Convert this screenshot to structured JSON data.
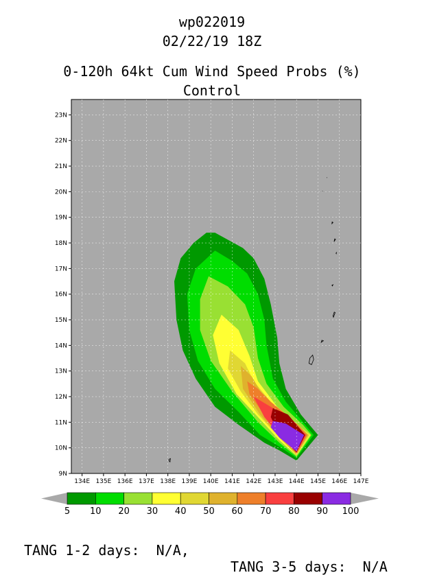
{
  "header": {
    "storm_id": "wp022019",
    "datetime": "02/22/19 18Z",
    "product": "0-120h 64kt Cum Wind Speed Probs (%)",
    "run": "Control"
  },
  "chart_data": {
    "type": "filled-contour-map",
    "xlabel": "",
    "ylabel": "",
    "xlim": [
      133.5,
      147
    ],
    "ylim": [
      9,
      23.6
    ],
    "x_ticks": [
      "134E",
      "135E",
      "136E",
      "137E",
      "138E",
      "139E",
      "140E",
      "141E",
      "142E",
      "143E",
      "144E",
      "145E",
      "146E",
      "147E"
    ],
    "x_tick_values": [
      134,
      135,
      136,
      137,
      138,
      139,
      140,
      141,
      142,
      143,
      144,
      145,
      146,
      147
    ],
    "y_ticks": [
      "9N",
      "10N",
      "11N",
      "12N",
      "13N",
      "14N",
      "15N",
      "16N",
      "17N",
      "18N",
      "19N",
      "20N",
      "21N",
      "22N",
      "23N"
    ],
    "y_tick_values": [
      9,
      10,
      11,
      12,
      13,
      14,
      15,
      16,
      17,
      18,
      19,
      20,
      21,
      22,
      23
    ],
    "grid": true,
    "background_color": "#a9a9a9",
    "colorbar": {
      "levels": [
        "5",
        "10",
        "20",
        "30",
        "40",
        "50",
        "60",
        "70",
        "80",
        "90",
        "100"
      ],
      "colors": [
        "#009900",
        "#00dd00",
        "#99e033",
        "#ffff33",
        "#e0d733",
        "#dfb22d",
        "#ee7f2a",
        "#f93f3f",
        "#990000",
        "#8a2be2"
      ]
    },
    "contours": [
      {
        "level": 5,
        "color": "#009900",
        "points": [
          [
            139.8,
            18.4
          ],
          [
            140.2,
            18.4
          ],
          [
            141.5,
            17.8
          ],
          [
            142,
            17.4
          ],
          [
            142.5,
            16.6
          ],
          [
            142.8,
            15.6
          ],
          [
            143.1,
            14.3
          ],
          [
            143.2,
            13.3
          ],
          [
            143.5,
            12.3
          ],
          [
            144.2,
            11.3
          ],
          [
            145,
            10.5
          ],
          [
            144,
            9.5
          ],
          [
            143.2,
            9.9
          ],
          [
            142.5,
            10.2
          ],
          [
            141.3,
            10.9
          ],
          [
            140.2,
            11.6
          ],
          [
            139.3,
            12.7
          ],
          [
            138.7,
            13.8
          ],
          [
            138.4,
            15
          ],
          [
            138.3,
            16.5
          ],
          [
            138.6,
            17.4
          ],
          [
            139.2,
            18
          ]
        ]
      },
      {
        "level": 10,
        "color": "#00dd00",
        "points": [
          [
            140.2,
            17.7
          ],
          [
            141,
            17.3
          ],
          [
            141.7,
            16.8
          ],
          [
            142.2,
            16
          ],
          [
            142.5,
            15
          ],
          [
            142.6,
            14
          ],
          [
            142.9,
            12.7
          ],
          [
            143.5,
            11.8
          ],
          [
            144.3,
            11
          ],
          [
            144.8,
            10.5
          ],
          [
            144,
            9.6
          ],
          [
            143.3,
            10
          ],
          [
            142.3,
            10.5
          ],
          [
            141.3,
            11.4
          ],
          [
            140.2,
            12.3
          ],
          [
            139.4,
            13.4
          ],
          [
            139,
            14.6
          ],
          [
            138.9,
            16
          ],
          [
            139.3,
            17
          ]
        ]
      },
      {
        "level": 20,
        "color": "#99e033",
        "points": [
          [
            139.9,
            16.7
          ],
          [
            140.8,
            16.3
          ],
          [
            141.6,
            15.6
          ],
          [
            142,
            14.7
          ],
          [
            142.2,
            13.5
          ],
          [
            142.6,
            12.5
          ],
          [
            143.4,
            11.6
          ],
          [
            144.3,
            10.9
          ],
          [
            144.7,
            10.5
          ],
          [
            144,
            9.65
          ],
          [
            143.2,
            10.2
          ],
          [
            142.2,
            11
          ],
          [
            141,
            12.2
          ],
          [
            140,
            13.4
          ],
          [
            139.5,
            14.6
          ],
          [
            139.5,
            15.8
          ]
        ]
      },
      {
        "level": 30,
        "color": "#ffff33",
        "points": [
          [
            140.5,
            15.2
          ],
          [
            141.3,
            14.6
          ],
          [
            141.8,
            13.6
          ],
          [
            142.2,
            12.6
          ],
          [
            143.1,
            11.6
          ],
          [
            144.2,
            10.8
          ],
          [
            144.65,
            10.5
          ],
          [
            144,
            9.7
          ],
          [
            143.2,
            10.3
          ],
          [
            142.2,
            11.2
          ],
          [
            141.2,
            12.1
          ],
          [
            140.4,
            13.3
          ],
          [
            140.1,
            14.4
          ]
        ]
      },
      {
        "level": 40,
        "color": "#e0d733",
        "points": [
          [
            140.9,
            13.8
          ],
          [
            141.6,
            13.3
          ],
          [
            142,
            12.6
          ],
          [
            142.9,
            11.7
          ],
          [
            144.2,
            10.8
          ],
          [
            144.6,
            10.5
          ],
          [
            144,
            9.72
          ],
          [
            143.2,
            10.4
          ],
          [
            142.2,
            11.3
          ],
          [
            141.4,
            12.2
          ],
          [
            140.8,
            13.1
          ]
        ]
      },
      {
        "level": 50,
        "color": "#dfb22d",
        "points": [
          [
            141.4,
            13.2
          ],
          [
            141.9,
            12.8
          ],
          [
            142.4,
            12.1
          ],
          [
            143,
            11.6
          ],
          [
            144.1,
            10.9
          ],
          [
            144.55,
            10.5
          ],
          [
            144,
            9.75
          ],
          [
            143.2,
            10.4
          ],
          [
            142.3,
            11.3
          ],
          [
            141.5,
            12.3
          ]
        ]
      },
      {
        "level": 60,
        "color": "#ee7f2a",
        "points": [
          [
            141.7,
            12.6
          ],
          [
            142.2,
            12.3
          ],
          [
            142.8,
            11.8
          ],
          [
            143.8,
            11.1
          ],
          [
            144.5,
            10.5
          ],
          [
            144,
            9.78
          ],
          [
            143.2,
            10.5
          ],
          [
            142.4,
            11.4
          ],
          [
            141.8,
            12.1
          ]
        ]
      },
      {
        "level": 70,
        "color": "#f93f3f",
        "points": [
          [
            142,
            12
          ],
          [
            142.6,
            11.7
          ],
          [
            143.6,
            11.2
          ],
          [
            144.45,
            10.5
          ],
          [
            144,
            9.8
          ],
          [
            143.2,
            10.5
          ],
          [
            142.5,
            11.2
          ]
        ]
      },
      {
        "level": 80,
        "color": "#990000",
        "points": [
          [
            142.9,
            11.55
          ],
          [
            143.6,
            11.3
          ],
          [
            144.4,
            10.5
          ],
          [
            144,
            9.83
          ],
          [
            143.2,
            10.5
          ],
          [
            142.8,
            11.2
          ]
        ]
      },
      {
        "level": 90,
        "color": "#8a2be2",
        "points": [
          [
            142.9,
            11.05
          ],
          [
            143.5,
            10.95
          ],
          [
            144.35,
            10.5
          ],
          [
            144,
            9.86
          ],
          [
            143.2,
            10.4
          ],
          [
            142.8,
            10.8
          ]
        ]
      }
    ],
    "islands": [
      {
        "name": "island-small",
        "points": [
          [
            138.05,
            9.55
          ],
          [
            138.12,
            9.58
          ],
          [
            138.1,
            9.45
          ],
          [
            138.05,
            9.5
          ]
        ]
      },
      {
        "name": "island-guam",
        "points": [
          [
            144.7,
            13.25
          ],
          [
            144.8,
            13.45
          ],
          [
            144.75,
            13.62
          ],
          [
            144.62,
            13.5
          ],
          [
            144.58,
            13.3
          ]
        ]
      },
      {
        "name": "island-rota",
        "points": [
          [
            145.15,
            14.12
          ],
          [
            145.25,
            14.18
          ],
          [
            145.18,
            14.2
          ]
        ]
      },
      {
        "name": "island-saipan",
        "points": [
          [
            145.72,
            15.1
          ],
          [
            145.8,
            15.28
          ],
          [
            145.76,
            15.3
          ],
          [
            145.7,
            15.15
          ]
        ]
      },
      {
        "name": "island-anatahan",
        "points": [
          [
            145.65,
            16.35
          ],
          [
            145.7,
            16.37
          ],
          [
            145.67,
            16.32
          ]
        ]
      },
      {
        "name": "island-alamagan",
        "points": [
          [
            145.84,
            17.6
          ],
          [
            145.86,
            17.62
          ],
          [
            145.85,
            17.58
          ]
        ]
      },
      {
        "name": "island-pagan",
        "points": [
          [
            145.75,
            18.05
          ],
          [
            145.82,
            18.14
          ],
          [
            145.78,
            18.16
          ]
        ]
      },
      {
        "name": "island-agrihan",
        "points": [
          [
            145.65,
            18.75
          ],
          [
            145.7,
            18.8
          ],
          [
            145.66,
            18.82
          ]
        ]
      },
      {
        "name": "island-uracas",
        "points": [
          [
            145.4,
            20.55
          ],
          [
            145.43,
            20.55
          ]
        ]
      },
      {
        "name": "island-maug",
        "points": [
          [
            145.2,
            20.02
          ],
          [
            145.23,
            20.0
          ]
        ]
      }
    ]
  },
  "footer": {
    "tang_12": "TANG 1-2 days:  N/A,",
    "tang_35": "TANG 3-5 days:  N/A"
  }
}
